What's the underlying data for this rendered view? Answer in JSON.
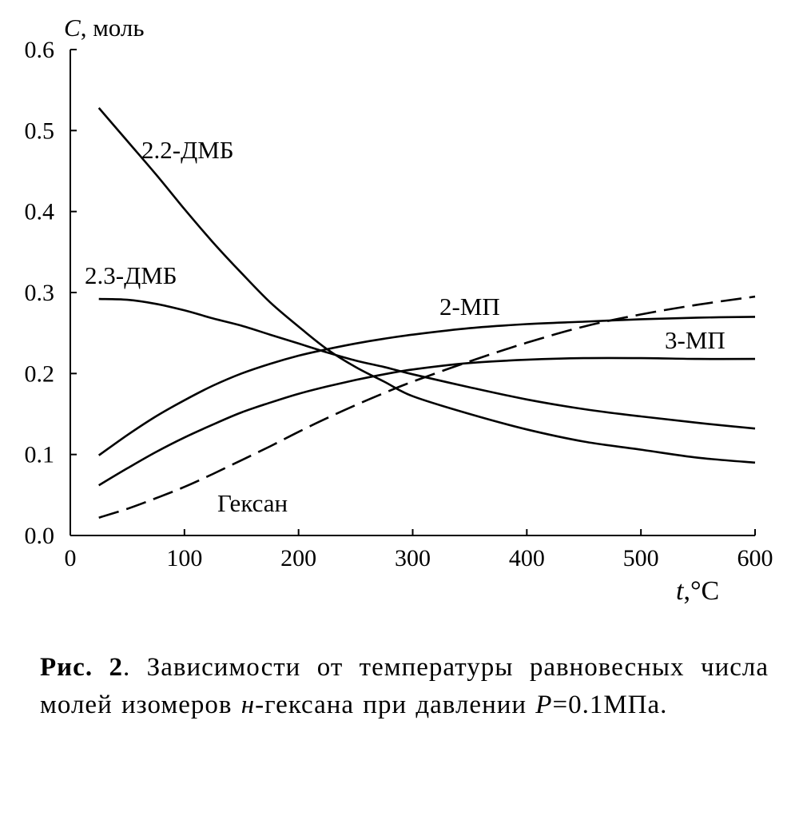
{
  "chart_data": {
    "type": "line",
    "ylabel_var": "C",
    "ylabel_unit": ", моль",
    "xlabel_var": "t",
    "xlabel_unit": ",°C",
    "xlim": [
      0,
      600
    ],
    "ylim": [
      0.0,
      0.6
    ],
    "xticks": [
      "0",
      "100",
      "200",
      "300",
      "400",
      "500",
      "600"
    ],
    "yticks": [
      "0.0",
      "0.1",
      "0.2",
      "0.3",
      "0.4",
      "0.5",
      "0.6"
    ],
    "grid": false,
    "legend": "none",
    "series": [
      {
        "name": "2.2-ДМБ",
        "style": "solid",
        "x": [
          25,
          50,
          75,
          100,
          125,
          150,
          175,
          200,
          225,
          250,
          275,
          300,
          350,
          400,
          450,
          500,
          550,
          600
        ],
        "y": [
          0.528,
          0.487,
          0.446,
          0.403,
          0.362,
          0.324,
          0.288,
          0.258,
          0.23,
          0.208,
          0.19,
          0.172,
          0.15,
          0.131,
          0.116,
          0.106,
          0.096,
          0.09
        ]
      },
      {
        "name": "2.3-ДМБ",
        "style": "solid",
        "x": [
          25,
          50,
          75,
          100,
          125,
          150,
          175,
          200,
          225,
          250,
          275,
          300,
          350,
          400,
          450,
          500,
          550,
          600
        ],
        "y": [
          0.292,
          0.291,
          0.286,
          0.278,
          0.268,
          0.259,
          0.248,
          0.237,
          0.226,
          0.216,
          0.208,
          0.199,
          0.183,
          0.168,
          0.156,
          0.147,
          0.139,
          0.132
        ]
      },
      {
        "name": "2-МП",
        "style": "solid",
        "x": [
          25,
          50,
          75,
          100,
          125,
          150,
          175,
          200,
          225,
          250,
          275,
          300,
          350,
          400,
          450,
          500,
          550,
          600
        ],
        "y": [
          0.099,
          0.124,
          0.147,
          0.167,
          0.185,
          0.2,
          0.212,
          0.222,
          0.23,
          0.237,
          0.243,
          0.248,
          0.256,
          0.261,
          0.264,
          0.267,
          0.269,
          0.27
        ]
      },
      {
        "name": "3-МП",
        "style": "solid",
        "x": [
          25,
          50,
          75,
          100,
          125,
          150,
          175,
          200,
          225,
          250,
          275,
          300,
          350,
          400,
          450,
          500,
          550,
          600
        ],
        "y": [
          0.062,
          0.083,
          0.103,
          0.121,
          0.137,
          0.152,
          0.164,
          0.175,
          0.184,
          0.192,
          0.199,
          0.205,
          0.213,
          0.217,
          0.219,
          0.219,
          0.218,
          0.218
        ]
      },
      {
        "name": "Гексан",
        "style": "dashed",
        "x": [
          25,
          50,
          75,
          100,
          125,
          150,
          175,
          200,
          225,
          250,
          275,
          300,
          350,
          400,
          450,
          500,
          550,
          600
        ],
        "y": [
          0.022,
          0.033,
          0.046,
          0.06,
          0.076,
          0.093,
          0.11,
          0.128,
          0.145,
          0.161,
          0.176,
          0.19,
          0.215,
          0.238,
          0.258,
          0.273,
          0.285,
          0.295
        ]
      }
    ]
  },
  "caption": {
    "fig": "Рис. 2",
    "text1": ". Зависимости от температуры равновесных числа молей изомеров ",
    "text_it": "н",
    "text2": "-гексана при давлении ",
    "p_var": "P",
    "p_val": "=0.1МПа."
  }
}
